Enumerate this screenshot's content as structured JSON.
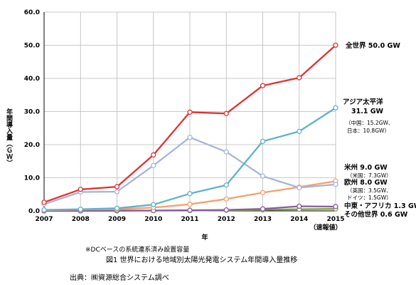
{
  "chart_data": {
    "type": "line",
    "x": [
      "2007",
      "2008",
      "2009",
      "2010",
      "2011",
      "2012",
      "2013",
      "2014",
      "2015"
    ],
    "x_tick_labels": [
      "2007",
      "2008",
      "2009",
      "2010",
      "2011",
      "2012",
      "2013",
      "2014",
      "2015"
    ],
    "x_last_note": "（速報値）",
    "xlabel": "年",
    "ylabel": "年間導入量（ＧＷ）",
    "ylim": [
      0,
      60
    ],
    "y_ticks": [
      "0.0",
      "10.0",
      "20.0",
      "30.0",
      "40.0",
      "50.0",
      "60.0"
    ],
    "grid": true,
    "series": [
      {
        "key": "world",
        "color": "#e03232",
        "values": [
          2.6,
          6.5,
          7.3,
          16.9,
          29.8,
          29.4,
          37.8,
          40.2,
          50.0
        ]
      },
      {
        "key": "asia",
        "color": "#5fb3c7",
        "values": [
          0.3,
          0.5,
          0.8,
          1.9,
          5.2,
          7.8,
          21.0,
          24.0,
          31.1
        ]
      },
      {
        "key": "europe",
        "color": "#a5b6d6",
        "values": [
          2.0,
          5.7,
          5.8,
          13.7,
          22.2,
          17.8,
          10.5,
          7.0,
          8.0
        ]
      },
      {
        "key": "americas",
        "color": "#f5a06e",
        "values": [
          0.2,
          0.4,
          0.5,
          1.0,
          2.0,
          3.6,
          5.5,
          7.2,
          9.0
        ]
      },
      {
        "key": "mea",
        "color": "#8b5aa0",
        "values": [
          0.0,
          0.0,
          0.1,
          0.1,
          0.2,
          0.3,
          0.6,
          1.4,
          1.3
        ]
      },
      {
        "key": "other",
        "color": "#7aa23c",
        "values": [
          0.0,
          0.0,
          0.0,
          0.1,
          0.1,
          0.2,
          0.3,
          0.5,
          0.6
        ]
      }
    ],
    "annotations": {
      "world": "全世界 50.0 GW",
      "asia_line1": "アジア太平洋",
      "asia_line2": "31.1 GW",
      "asia_sub1": "（中国：15.2GW、",
      "asia_sub2": "日本：10.8GW）",
      "americas": "米州 9.0 GW",
      "americas_sub": "（米国：7.3GW）",
      "europe": "欧州 8.0 GW",
      "europe_sub1": "（英国：3.5GW、",
      "europe_sub2": "ドイツ：1.5GW）",
      "mea": "中東・アフリカ 1.3 GW",
      "other": "その他世界 0.6 GW"
    }
  },
  "note": "※DCベースの系統連系済み設置容量",
  "caption": "図1 世界における地域別太陽光発電システム年間導入量推移",
  "source": "出典：㈱資源総合システム調べ"
}
